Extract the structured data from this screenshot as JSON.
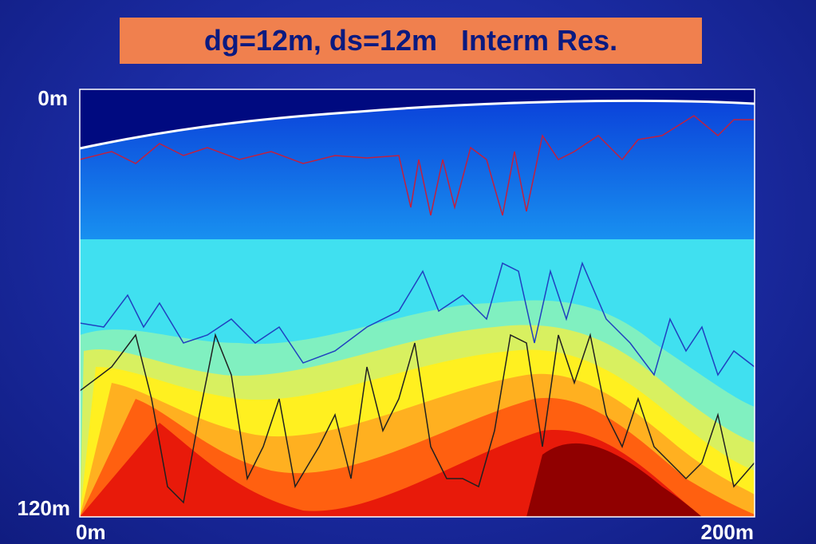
{
  "title": "dg=12m, ds=12m   Interm Res.",
  "axes": {
    "y_top": "0m",
    "y_bottom": "120m",
    "x_left": "0m",
    "x_right": "200m"
  }
}
